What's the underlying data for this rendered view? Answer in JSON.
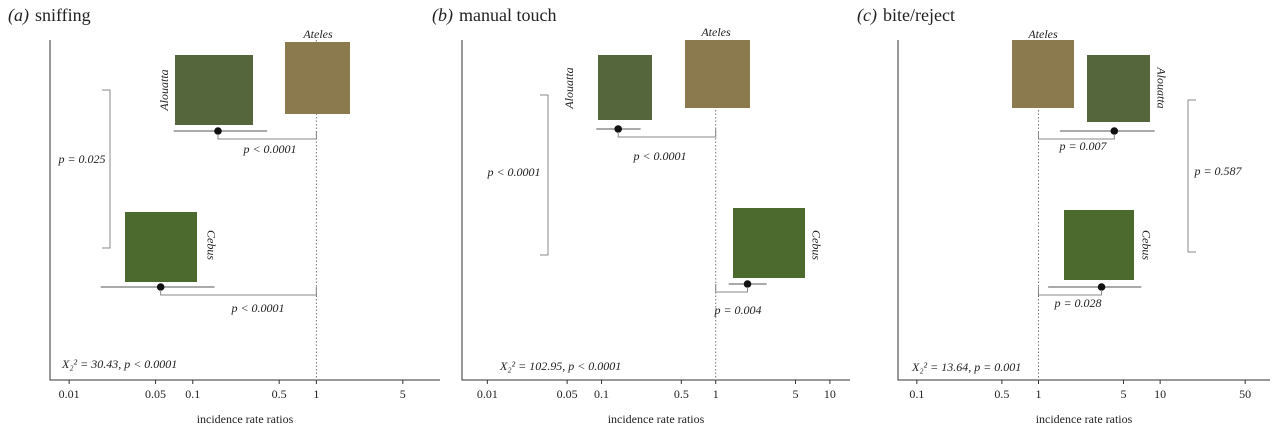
{
  "chart_data": [
    {
      "type": "forest",
      "panel_label": "(a)",
      "title": "sniffing",
      "xlabel": "incidence rate ratios",
      "xscale": "log",
      "xlim": [
        0.007,
        10
      ],
      "xticks": [
        0.01,
        0.05,
        0.1,
        0.5,
        1,
        5
      ],
      "reference": {
        "name": "Ateles",
        "value": 1
      },
      "points": [
        {
          "name": "Alouatta",
          "value": 0.16,
          "ci": [
            0.07,
            0.4
          ]
        },
        {
          "name": "Cebus",
          "value": 0.055,
          "ci": [
            0.018,
            0.15
          ]
        }
      ],
      "comparisons": [
        "p < 0.0001",
        "p < 0.0001",
        "p = 0.025"
      ],
      "statistic": "X₂² = 30.43, p < 0.0001"
    },
    {
      "type": "forest",
      "panel_label": "(b)",
      "title": "manual touch",
      "xlabel": "incidence rate ratios",
      "xscale": "log",
      "xlim": [
        0.006,
        15
      ],
      "xticks": [
        0.01,
        0.05,
        0.1,
        0.5,
        1,
        5,
        10
      ],
      "reference": {
        "name": "Ateles",
        "value": 1
      },
      "points": [
        {
          "name": "Alouatta",
          "value": 0.14,
          "ci": [
            0.09,
            0.22
          ]
        },
        {
          "name": "Cebus",
          "value": 1.9,
          "ci": [
            1.3,
            2.8
          ]
        }
      ],
      "comparisons": [
        "p < 0.0001",
        "p = 0.004",
        "p < 0.0001"
      ],
      "statistic": "X₂² = 102.95, p < 0.0001"
    },
    {
      "type": "forest",
      "panel_label": "(c)",
      "title": "bite/reject",
      "xlabel": "incidence rate ratios",
      "xscale": "log",
      "xlim": [
        0.07,
        80
      ],
      "xticks": [
        0.1,
        0.5,
        1,
        5,
        10,
        50
      ],
      "reference": {
        "name": "Ateles",
        "value": 1
      },
      "points": [
        {
          "name": "Alouatta",
          "value": 4.2,
          "ci": [
            1.5,
            9
          ]
        },
        {
          "name": "Cebus",
          "value": 3.3,
          "ci": [
            1.2,
            7
          ]
        }
      ],
      "comparisons": [
        "p = 0.007",
        "p = 0.028",
        "p = 0.587"
      ],
      "statistic": "X₂² = 13.64, p = 0.001"
    }
  ]
}
